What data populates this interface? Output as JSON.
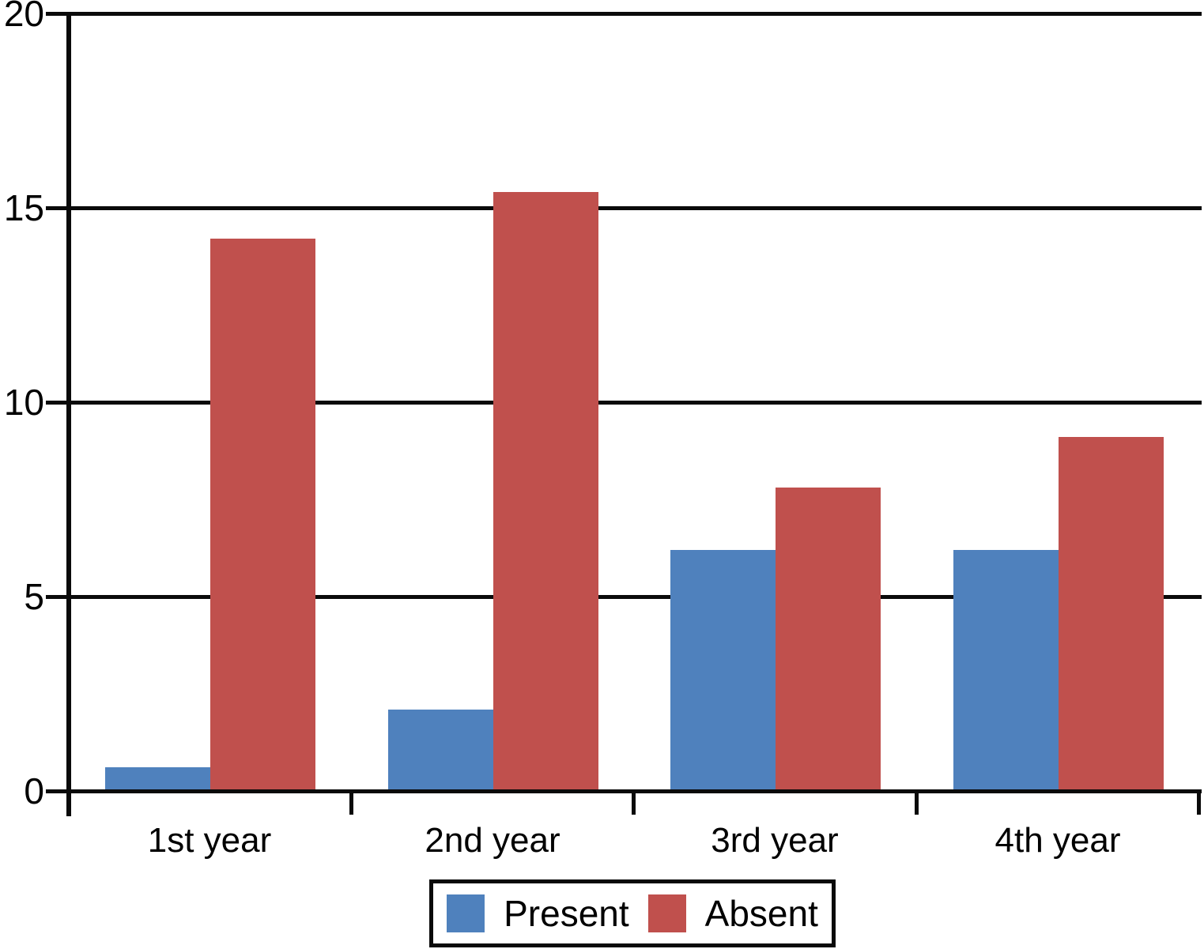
{
  "chart_data": {
    "type": "bar",
    "title": "",
    "xlabel": "",
    "ylabel": "",
    "categories": [
      "1st year",
      "2nd year",
      "3rd year",
      "4th year"
    ],
    "series": [
      {
        "name": "Present",
        "color": "#4f81bd",
        "values": [
          0.6,
          2.1,
          6.2,
          6.2
        ]
      },
      {
        "name": "Absent",
        "color": "#c0504d",
        "values": [
          14.2,
          15.4,
          7.8,
          9.1
        ]
      }
    ],
    "ylim": [
      0,
      20
    ],
    "yticks": [
      0,
      5,
      10,
      15,
      20
    ],
    "ytick_labels": [
      "0",
      "5",
      "10",
      "15",
      "20"
    ],
    "grid": "horizontal",
    "legend_position": "bottom-center",
    "axis_color": "#0a0a0a",
    "background": "#ffffff"
  }
}
